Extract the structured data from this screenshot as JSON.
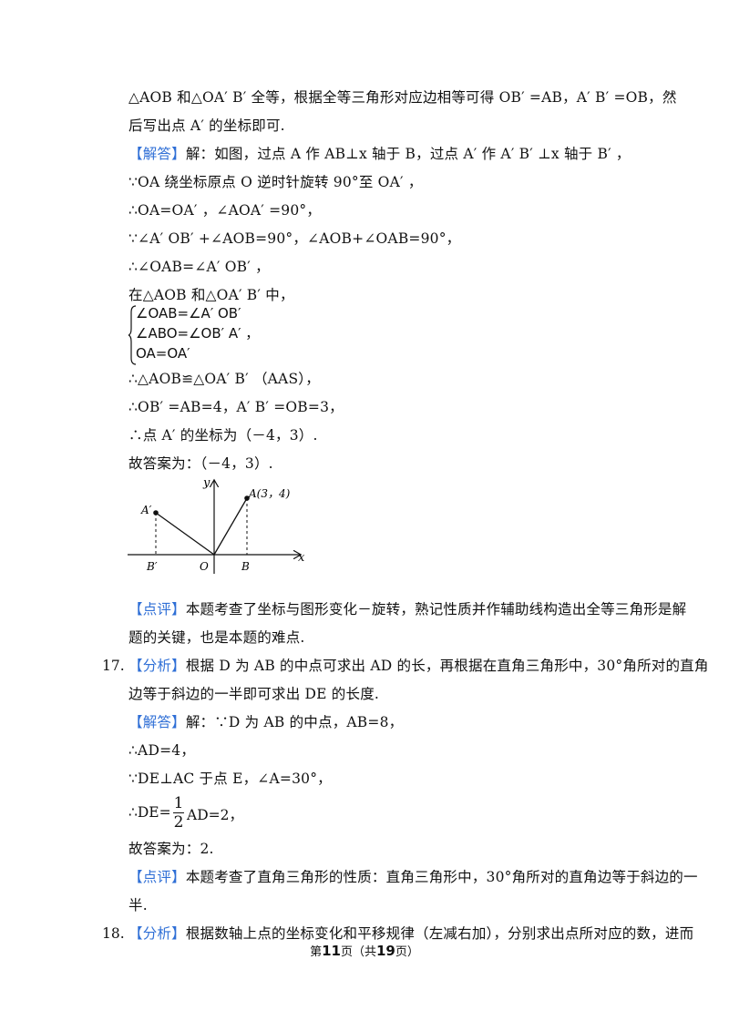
{
  "lines": {
    "l1": "△AOB 和△OA′ B′ 全等，根据全等三角形对应边相等可得 OB′ =AB，A′ B′ =OB，然",
    "l2": "后写出点 A′ 的坐标即可.",
    "l3_tag": "【解答】",
    "l3": "解：如图，过点 A 作 AB⊥x 轴于 B，过点 A′ 作 A′ B′ ⊥x 轴于 B′ ，",
    "l4": "∵OA 绕坐标原点 O 逆时针旋转 90°至 OA′ ，",
    "l5": "∴OA=OA′ ，∠AOA′ =90°，",
    "l6": "∵∠A′ OB′ +∠AOB=90°，∠AOB+∠OAB=90°，",
    "l7": "∴∠OAB=∠A′ OB′ ，",
    "l8": "在△AOB 和△OA′ B′ 中，",
    "b1": "∠OAB=∠A′ OB′",
    "b2": "∠ABO=∠OB′ A′ ，",
    "b3": "OA=OA′",
    "l9": "∴△AOB≌△OA′ B′ （AAS），",
    "l10": "∴OB′ =AB=4，A′ B′ =OB=3，",
    "l11": "∴点 A′ 的坐标为（－4，3）.",
    "l12": "故答案为：（－4，3）.",
    "c1_tag": "【点评】",
    "c1": "本题考查了坐标与图形变化－旋转，熟记性质并作辅助线构造出全等三角形是解",
    "c2": "题的关键，也是本题的难点.",
    "q17_num": "17.",
    "q17_tag": "【分析】",
    "q17a": "根据 D 为 AB 的中点可求出 AD 的长，再根据在直角三角形中，30°角所对的直角",
    "q17b": "边等于斜边的一半即可求出 DE 的长度.",
    "s17_tag": "【解答】",
    "s17a": "解：∵D 为 AB 的中点，AB=8，",
    "s17b": "∴AD=4，",
    "s17c": "∵DE⊥AC 于点 E，∠A=30°，",
    "s17d_pre": "∴DE=",
    "s17d_num": "1",
    "s17d_den": "2",
    "s17d_post": "AD=2，",
    "s17e": "故答案为：2.",
    "c17_tag": "【点评】",
    "c17a": "本题考查了直角三角形的性质：直角三角形中，30°角所对的直角边等于斜边的一",
    "c17b": "半.",
    "q18_num": "18.",
    "q18_tag": "【分析】",
    "q18a": "根据数轴上点的坐标变化和平移规律（左减右加），分别求出点所对应的数，进而"
  },
  "figure": {
    "y_label": "y",
    "x_label": "x",
    "A_label": "A(3，4)",
    "A_prime_label": "A′",
    "B_label": "B",
    "B_prime_label": "B′",
    "O_label": "O"
  },
  "footer": {
    "pre": "第",
    "page": "11",
    "mid": "页（共",
    "total": "19",
    "post": "页）"
  },
  "colors": {
    "tag": "#2f6fd6",
    "text": "#111111"
  }
}
